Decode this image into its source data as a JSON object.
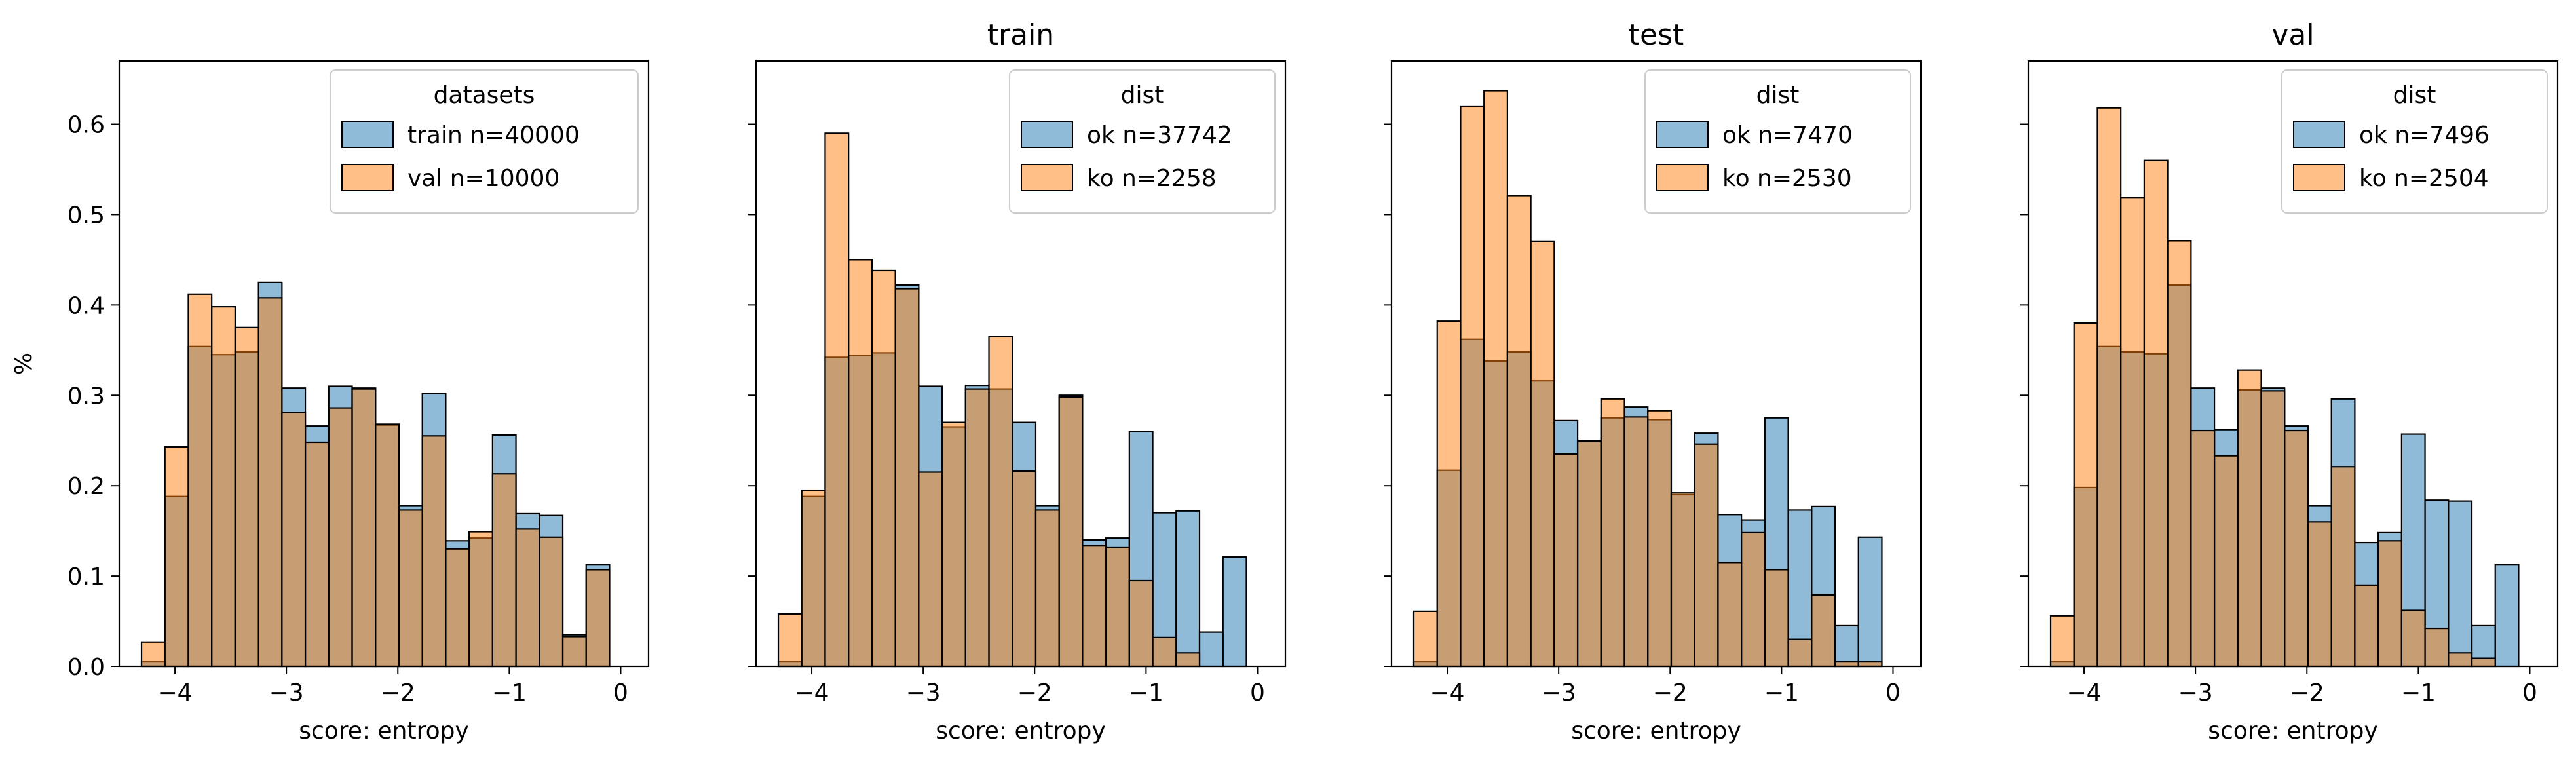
{
  "colors": {
    "blue": "#1f77b4",
    "orange": "#ff7f0e",
    "overlap": "#b58a67"
  },
  "figure": {
    "ylabel": "%"
  },
  "chart_data": [
    {
      "type": "histogram",
      "title": "",
      "xlabel": "score: entropy",
      "ylabel": "%",
      "xlim": [
        -4.5,
        0.25
      ],
      "ylim": [
        0,
        0.67
      ],
      "xticks": [
        -4,
        -3,
        -2,
        -1,
        0
      ],
      "yticks": [
        0.0,
        0.1,
        0.2,
        0.3,
        0.4,
        0.5,
        0.6
      ],
      "bin_start": -4.3,
      "bin_width": 0.21,
      "legend": {
        "title": "datasets",
        "position": "top-right"
      },
      "series": [
        {
          "name": "train n=40000",
          "color": "blue",
          "values": [
            0.005,
            0.188,
            0.354,
            0.345,
            0.348,
            0.425,
            0.308,
            0.266,
            0.31,
            0.308,
            0.267,
            0.178,
            0.302,
            0.139,
            0.142,
            0.256,
            0.169,
            0.167,
            0.035,
            0.113
          ]
        },
        {
          "name": "val n=10000",
          "color": "orange",
          "values": [
            0.027,
            0.243,
            0.412,
            0.398,
            0.375,
            0.408,
            0.281,
            0.248,
            0.286,
            0.307,
            0.268,
            0.173,
            0.255,
            0.13,
            0.149,
            0.213,
            0.152,
            0.143,
            0.033,
            0.107
          ]
        }
      ]
    },
    {
      "type": "histogram",
      "title": "train",
      "xlabel": "score: entropy",
      "ylabel": "",
      "xlim": [
        -4.5,
        0.25
      ],
      "ylim": [
        0,
        0.67
      ],
      "xticks": [
        -4,
        -3,
        -2,
        -1,
        0
      ],
      "yticks": [
        0.0,
        0.1,
        0.2,
        0.3,
        0.4,
        0.5,
        0.6
      ],
      "bin_start": -4.3,
      "bin_width": 0.21,
      "legend": {
        "title": "dist",
        "position": "top-right"
      },
      "series": [
        {
          "name": "ok n=37742",
          "color": "blue",
          "values": [
            0.005,
            0.188,
            0.342,
            0.344,
            0.347,
            0.422,
            0.31,
            0.265,
            0.311,
            0.307,
            0.27,
            0.178,
            0.3,
            0.14,
            0.142,
            0.26,
            0.17,
            0.172,
            0.038,
            0.121
          ]
        },
        {
          "name": "ko n=2258",
          "color": "orange",
          "values": [
            0.058,
            0.195,
            0.59,
            0.45,
            0.438,
            0.418,
            0.215,
            0.27,
            0.307,
            0.365,
            0.216,
            0.173,
            0.298,
            0.134,
            0.132,
            0.095,
            0.032,
            0.015,
            0.0,
            0.0
          ]
        }
      ]
    },
    {
      "type": "histogram",
      "title": "test",
      "xlabel": "score: entropy",
      "ylabel": "",
      "xlim": [
        -4.5,
        0.25
      ],
      "ylim": [
        0,
        0.67
      ],
      "xticks": [
        -4,
        -3,
        -2,
        -1,
        0
      ],
      "yticks": [
        0.0,
        0.1,
        0.2,
        0.3,
        0.4,
        0.5,
        0.6
      ],
      "bin_start": -4.3,
      "bin_width": 0.21,
      "legend": {
        "title": "dist",
        "position": "top-right"
      },
      "series": [
        {
          "name": "ok n=7470",
          "color": "blue",
          "values": [
            0.005,
            0.217,
            0.362,
            0.338,
            0.348,
            0.316,
            0.272,
            0.25,
            0.275,
            0.287,
            0.273,
            0.19,
            0.258,
            0.168,
            0.162,
            0.275,
            0.173,
            0.177,
            0.045,
            0.143
          ]
        },
        {
          "name": "ko n=2530",
          "color": "orange",
          "values": [
            0.061,
            0.382,
            0.62,
            0.637,
            0.521,
            0.47,
            0.235,
            0.249,
            0.296,
            0.276,
            0.283,
            0.192,
            0.246,
            0.115,
            0.148,
            0.107,
            0.03,
            0.079,
            0.005,
            0.005
          ]
        }
      ]
    },
    {
      "type": "histogram",
      "title": "val",
      "xlabel": "score: entropy",
      "ylabel": "",
      "xlim": [
        -4.5,
        0.25
      ],
      "ylim": [
        0,
        0.67
      ],
      "xticks": [
        -4,
        -3,
        -2,
        -1,
        0
      ],
      "yticks": [
        0.0,
        0.1,
        0.2,
        0.3,
        0.4,
        0.5,
        0.6
      ],
      "bin_start": -4.3,
      "bin_width": 0.21,
      "legend": {
        "title": "dist",
        "position": "top-right"
      },
      "series": [
        {
          "name": "ok n=7496",
          "color": "blue",
          "values": [
            0.005,
            0.198,
            0.354,
            0.348,
            0.346,
            0.422,
            0.308,
            0.262,
            0.306,
            0.308,
            0.266,
            0.178,
            0.296,
            0.137,
            0.148,
            0.257,
            0.184,
            0.183,
            0.045,
            0.113
          ]
        },
        {
          "name": "ko n=2504",
          "color": "orange",
          "values": [
            0.056,
            0.38,
            0.618,
            0.519,
            0.56,
            0.471,
            0.261,
            0.233,
            0.328,
            0.305,
            0.261,
            0.16,
            0.221,
            0.09,
            0.139,
            0.062,
            0.042,
            0.015,
            0.009,
            0.0
          ]
        }
      ]
    }
  ]
}
